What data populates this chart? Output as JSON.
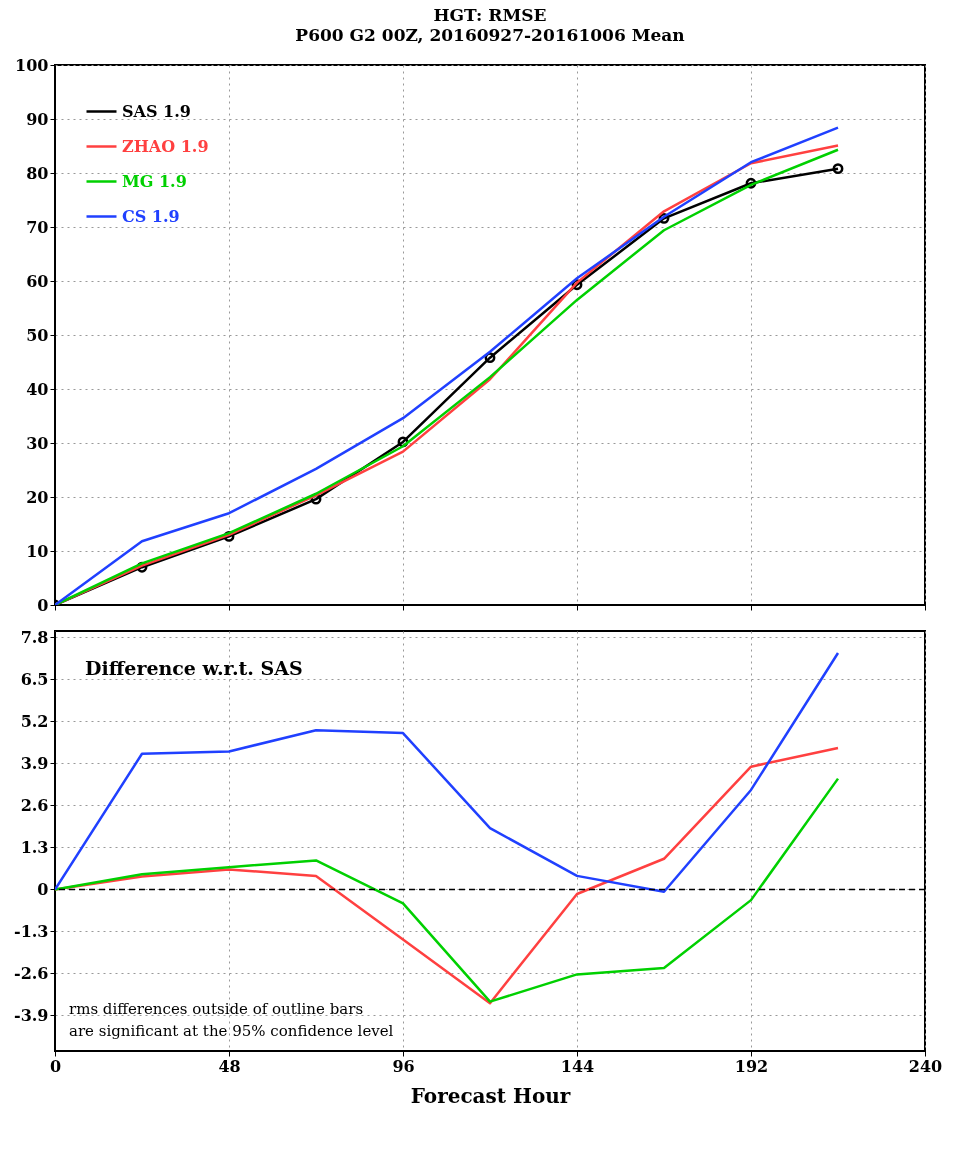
{
  "chart_data": [
    {
      "type": "line",
      "title": "HGT: RMSE",
      "subtitle": "P600 G2 00Z, 20160927-20161006 Mean",
      "x": [
        0,
        24,
        48,
        72,
        96,
        120,
        144,
        168,
        192,
        216
      ],
      "series": [
        {
          "name": "SAS 1.9",
          "color": "#000000",
          "marker": "circle",
          "values": [
            0,
            7.0,
            12.7,
            19.6,
            30.2,
            45.8,
            59.3,
            71.6,
            78.1,
            80.8
          ]
        },
        {
          "name": "ZHAO 1.9",
          "color": "#ff4040",
          "values": [
            0,
            7.3,
            13.0,
            20.3,
            28.4,
            41.8,
            59.7,
            72.9,
            81.8,
            85.1
          ]
        },
        {
          "name": "MG 1.9",
          "color": "#00d000",
          "values": [
            0,
            7.7,
            13.3,
            20.6,
            29.4,
            42.2,
            56.5,
            69.4,
            77.8,
            84.3
          ]
        },
        {
          "name": "CS 1.9",
          "color": "#2040ff",
          "values": [
            0,
            11.8,
            17.0,
            25.2,
            34.6,
            46.9,
            60.5,
            71.9,
            82.0,
            88.4
          ]
        }
      ],
      "xlim": [
        0,
        240
      ],
      "xticks": [
        0,
        48,
        96,
        144,
        192,
        240
      ],
      "ylim": [
        0,
        100
      ],
      "yticks": [
        0,
        10,
        20,
        30,
        40,
        50,
        60,
        70,
        80,
        90,
        100
      ],
      "tick_labels": "y",
      "grid": true,
      "legend": "top left"
    },
    {
      "type": "line",
      "annotations": [
        "Difference w.r.t. SAS",
        "rms differences outside of outline bars",
        "are significant at the 95% confidence level"
      ],
      "x": [
        0,
        24,
        48,
        72,
        96,
        120,
        144,
        168,
        192,
        216
      ],
      "series": [
        {
          "color": "#ff4040",
          "values": [
            0,
            0.4,
            0.62,
            0.42,
            -1.55,
            -3.52,
            -0.14,
            0.95,
            3.8,
            4.38
          ]
        },
        {
          "color": "#00d000",
          "values": [
            0,
            0.47,
            0.69,
            0.9,
            -0.43,
            -3.47,
            -2.63,
            -2.43,
            -0.33,
            3.43
          ]
        },
        {
          "color": "#2040ff",
          "values": [
            0,
            4.2,
            4.27,
            4.93,
            4.84,
            1.9,
            0.42,
            -0.07,
            3.08,
            7.32
          ]
        }
      ],
      "xlabel": "Forecast Hour",
      "xlim": [
        0,
        240
      ],
      "xticks": [
        0,
        48,
        96,
        144,
        192,
        240
      ],
      "ylim": [
        -5,
        8
      ],
      "yticks": [
        -3.9,
        -2.6,
        -1.3,
        0,
        1.3,
        2.6,
        3.9,
        5.2,
        6.5,
        7.8
      ],
      "ref_lines": [
        {
          "axis": "y",
          "value": 0,
          "color": "#000000",
          "line_style": "dashed"
        }
      ],
      "grid": true
    }
  ]
}
